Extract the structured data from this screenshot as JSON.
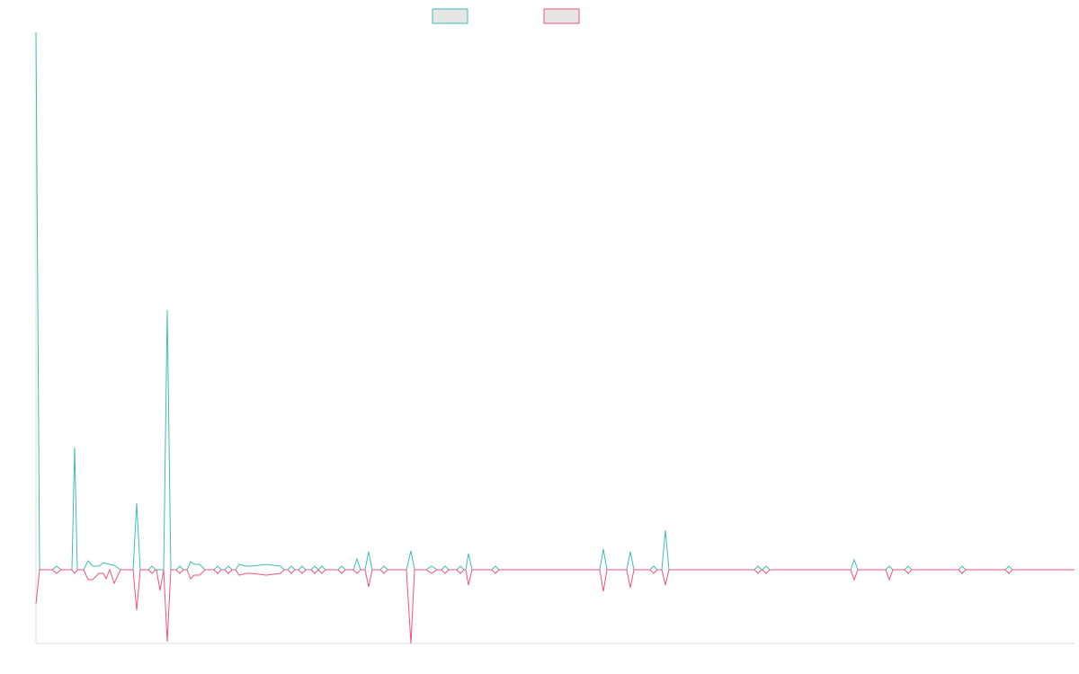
{
  "chart_data": {
    "type": "line",
    "x": [
      0,
      4,
      18,
      23,
      28,
      40,
      43,
      46,
      53,
      58,
      63,
      70,
      75,
      78,
      82,
      87,
      94,
      108,
      112,
      116,
      125,
      129,
      133,
      134,
      138,
      142,
      146,
      150,
      156,
      160,
      164,
      168,
      172,
      176,
      182,
      188,
      198,
      202,
      206,
      210,
      214,
      218,
      222,
      226,
      234,
      240,
      256,
      272,
      276,
      280,
      284,
      288,
      292,
      296,
      300,
      306,
      310,
      314,
      318,
      322,
      336,
      340,
      344,
      353,
      357,
      361,
      366,
      370,
      374,
      383,
      387,
      391,
      412,
      417,
      421,
      434,
      440,
      446,
      451,
      455,
      459,
      468,
      472,
      476,
      478,
      481,
      485,
      507,
      511,
      515,
      627,
      631,
      635,
      657,
      661,
      665,
      683,
      687,
      691,
      696,
      700,
      704,
      799,
      803,
      807,
      808,
      812,
      816,
      906,
      910,
      914,
      945,
      949,
      953,
      966,
      970,
      974,
      1026,
      1030,
      1034,
      1078,
      1082,
      1086,
      1155
    ],
    "series": [
      {
        "color": "#3dbdb5",
        "values": [
          598,
          0,
          0,
          4,
          0,
          0,
          136,
          0,
          0,
          10,
          4,
          4,
          8,
          7,
          6,
          5,
          0,
          0,
          74,
          0,
          0,
          4,
          0,
          0,
          0,
          0,
          289,
          0,
          0,
          4,
          0,
          0,
          9,
          6,
          6,
          0,
          0,
          4,
          0,
          0,
          4,
          0,
          0,
          6,
          4,
          4,
          6,
          4,
          0,
          0,
          4,
          0,
          0,
          4,
          0,
          0,
          4,
          0,
          4,
          0,
          0,
          4,
          0,
          0,
          12,
          0,
          0,
          20,
          0,
          0,
          4,
          0,
          0,
          21,
          0,
          0,
          4,
          0,
          0,
          4,
          0,
          0,
          4,
          0,
          0,
          18,
          0,
          0,
          4,
          0,
          0,
          23,
          0,
          0,
          20,
          0,
          0,
          4,
          0,
          0,
          44,
          0,
          0,
          4,
          0,
          0,
          4,
          0,
          0,
          11,
          0,
          0,
          4,
          0,
          0,
          4,
          0,
          0,
          4,
          0,
          0,
          4,
          0,
          0
        ]
      },
      {
        "color": "#f0527e",
        "values": [
          -38,
          0,
          0,
          -4,
          0,
          0,
          -4,
          0,
          0,
          -11,
          -11,
          -4,
          -4,
          -10,
          0,
          -15,
          0,
          0,
          -45,
          0,
          0,
          -4,
          0,
          0,
          -23,
          0,
          -80,
          0,
          0,
          -4,
          0,
          0,
          -10,
          -6,
          -6,
          0,
          0,
          -4,
          0,
          0,
          -4,
          0,
          0,
          -6,
          -4,
          -4,
          -6,
          -4,
          0,
          0,
          -4,
          0,
          0,
          -4,
          0,
          0,
          -4,
          0,
          -4,
          0,
          0,
          -4,
          0,
          0,
          -4,
          0,
          0,
          -19,
          0,
          0,
          -4,
          0,
          0,
          -82,
          0,
          0,
          -4,
          0,
          0,
          -4,
          0,
          0,
          -4,
          0,
          0,
          -17,
          0,
          0,
          -4,
          0,
          0,
          -24,
          0,
          0,
          -20,
          0,
          0,
          -4,
          0,
          0,
          -17,
          0,
          0,
          -4,
          0,
          0,
          -4,
          0,
          0,
          -11,
          0,
          0,
          -11,
          0,
          0,
          -4,
          0,
          0,
          -4,
          0,
          0,
          -4,
          0,
          0
        ]
      }
    ],
    "xlim": [
      0,
      1155
    ],
    "ylim": [
      -82,
      598
    ]
  }
}
